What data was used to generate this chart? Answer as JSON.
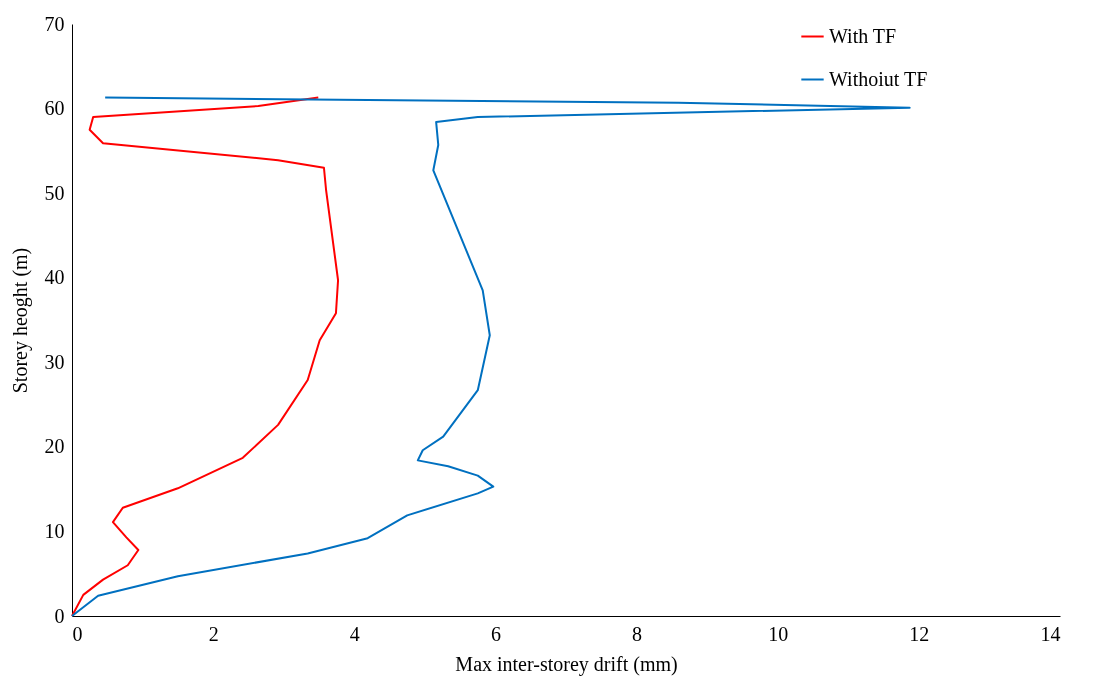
{
  "chart_data": {
    "type": "line",
    "xlabel": "Max inter-storey drift (mm)",
    "ylabel": "Storey heoght (m)",
    "xlim": [
      0,
      14
    ],
    "xticks": [
      0,
      2,
      4,
      6,
      8,
      10,
      12,
      14
    ],
    "ylim": [
      0,
      70
    ],
    "yticks": [
      0,
      10,
      20,
      30,
      40,
      50,
      60,
      70
    ],
    "grid": false,
    "legend": "right",
    "marker": "none",
    "line_style": "solid",
    "series": [
      {
        "name": "With TF",
        "color": "#ff0000",
        "x": [
          0,
          0.16,
          0.44,
          0.79,
          0.94,
          0.77,
          0.58,
          0.72,
          1.5,
          2.42,
          2.92,
          3.34,
          3.51,
          3.74,
          3.77,
          3.6,
          3.57,
          2.92,
          0.44,
          0.25,
          0.3,
          2.64,
          3.49
        ],
        "values": [
          0,
          2.5,
          4.3,
          6,
          7.8,
          9.3,
          11.1,
          12.8,
          15.1,
          18.7,
          22.6,
          27.9,
          32.6,
          35.8,
          39.7,
          50.4,
          53,
          53.9,
          55.9,
          57.5,
          59,
          60.3,
          61.3
        ]
      },
      {
        "name": "Withoiut TF",
        "color": "#0070c0",
        "x": [
          0,
          0.37,
          1.5,
          3.34,
          4.19,
          4.75,
          5.75,
          5.97,
          5.75,
          5.33,
          4.9,
          4.97,
          5.26,
          5.75,
          5.92,
          5.82,
          5.12,
          5.19,
          5.16,
          5.75,
          11.87,
          8.59,
          0.47
        ],
        "values": [
          0,
          2.4,
          4.7,
          7.4,
          9.2,
          11.9,
          14.5,
          15.3,
          16.6,
          17.7,
          18.4,
          19.6,
          21.2,
          26.7,
          33.2,
          38.5,
          52.7,
          55.7,
          58.4,
          59,
          60.1,
          60.7,
          61.3
        ]
      }
    ]
  }
}
